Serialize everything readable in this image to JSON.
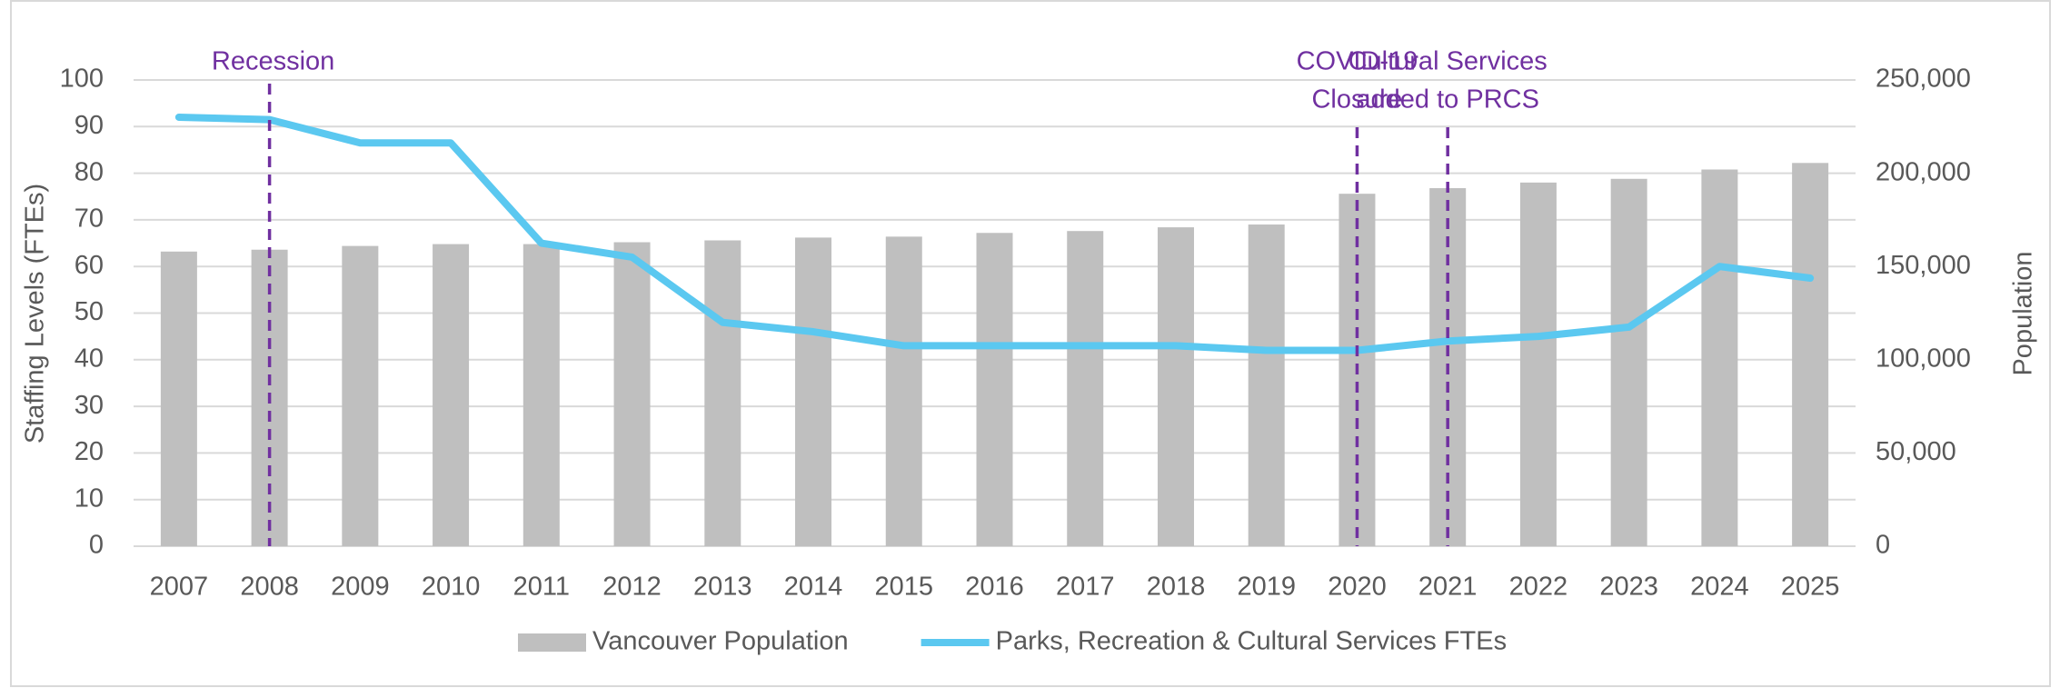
{
  "chart_data": {
    "type": "bar-line",
    "categories": [
      "2007",
      "2008",
      "2009",
      "2010",
      "2011",
      "2012",
      "2013",
      "2014",
      "2015",
      "2016",
      "2017",
      "2018",
      "2019",
      "2020",
      "2021",
      "2022",
      "2023",
      "2024",
      "2025"
    ],
    "series": [
      {
        "name": "Vancouver Population",
        "type": "bar",
        "axis": "y2",
        "color": "#bfbfbf",
        "values": [
          158000,
          159000,
          161000,
          162000,
          162000,
          163000,
          164000,
          165500,
          166000,
          168000,
          169000,
          171000,
          172500,
          189000,
          192000,
          195000,
          197000,
          202000,
          205500
        ]
      },
      {
        "name": "Parks, Recreation & Cultural Services FTEs",
        "type": "line",
        "axis": "y",
        "color": "#5bc8f0",
        "values": [
          92,
          91.5,
          86.5,
          86.5,
          65,
          62,
          48,
          46,
          43,
          43,
          43,
          43,
          42,
          42,
          44,
          45,
          47,
          60,
          57.5
        ]
      }
    ],
    "ylabel": "Staffing Levels (FTEs)",
    "y2label": "Population",
    "ylim": [
      0,
      100
    ],
    "yticks": [
      0,
      10,
      20,
      30,
      40,
      50,
      60,
      70,
      80,
      90,
      100
    ],
    "y2lim": [
      0,
      250000
    ],
    "y2ticks": [
      0,
      {
        "value": 50000,
        "label": "50,000"
      },
      {
        "value": 100000,
        "label": "100,000"
      },
      {
        "value": 150000,
        "label": "150,000"
      },
      {
        "value": 200000,
        "label": "200,000"
      },
      {
        "value": 250000,
        "label": "250,000"
      }
    ],
    "grid": true,
    "legend": "bottom",
    "annotations": [
      {
        "category": "2008",
        "lines": [
          "Recession"
        ],
        "color": "#7030a0"
      },
      {
        "category": "2020",
        "lines": [
          "COVID-19",
          "Closure"
        ],
        "color": "#7030a0"
      },
      {
        "category": "2021",
        "lines": [
          "Cultural Services",
          "added to PRCS"
        ],
        "color": "#7030a0"
      }
    ]
  }
}
